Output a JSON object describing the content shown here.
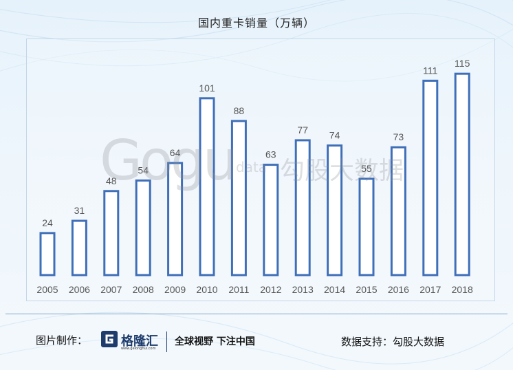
{
  "title": "国内重卡销量（万辆）",
  "chart_data": {
    "type": "bar",
    "title": "国内重卡销量（万辆）",
    "categories": [
      "2005",
      "2006",
      "2007",
      "2008",
      "2009",
      "2010",
      "2011",
      "2012",
      "2013",
      "2014",
      "2015",
      "2016",
      "2017",
      "2018"
    ],
    "values": [
      24,
      31,
      48,
      54,
      64,
      101,
      88,
      63,
      77,
      74,
      55,
      73,
      111,
      115
    ],
    "ylim": [
      0,
      130
    ],
    "grid": false,
    "bar_style": "outline",
    "colors": {
      "bar_stroke": "#3f6fb8",
      "bar_fill": "#ffffff",
      "label": "#555555"
    }
  },
  "footer": {
    "left_label": "图片制作：",
    "logo_name": "格隆汇",
    "logo_url": "www.gelonghui.com",
    "slogan": "全球视野 下注中国",
    "right_label": "数据支持：勾股大数据"
  },
  "watermark": {
    "big": "Gogu",
    "small": "data",
    "cn": "勾股大数据"
  }
}
